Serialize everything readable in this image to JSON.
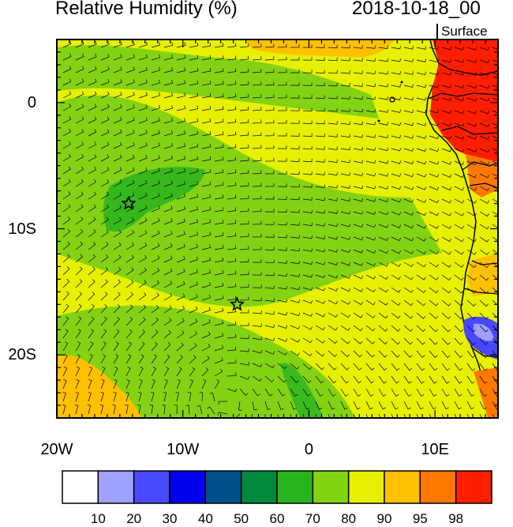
{
  "header": {
    "title": "Relative Humidity (%)",
    "datetime": "2018-10-18_00",
    "level": "Surface"
  },
  "map": {
    "lon_range": [
      -20,
      15
    ],
    "lat_range": [
      -25,
      5
    ],
    "lat_ticks": [
      {
        "value": 0,
        "label": "0"
      },
      {
        "value": -10,
        "label": "10S"
      },
      {
        "value": -20,
        "label": "20S"
      }
    ],
    "lon_ticks": [
      {
        "value": -20,
        "label": "20W"
      },
      {
        "value": -10,
        "label": "10W"
      },
      {
        "value": 0,
        "label": "0"
      },
      {
        "value": 10,
        "label": "10E"
      }
    ],
    "markers": [
      {
        "name": "star-marker",
        "lon": -14.3,
        "lat": -8.0
      },
      {
        "name": "star-marker",
        "lon": -5.7,
        "lat": -16.0
      }
    ]
  },
  "colorbar": {
    "colors": [
      "#ffffff",
      "#a0a0ff",
      "#4848ff",
      "#0000ee",
      "#00508c",
      "#00883c",
      "#28b41e",
      "#84d214",
      "#e6f000",
      "#ffc000",
      "#ff7800",
      "#ff1e00"
    ],
    "labels": [
      "10",
      "20",
      "30",
      "40",
      "50",
      "60",
      "70",
      "80",
      "90",
      "95",
      "98"
    ]
  }
}
